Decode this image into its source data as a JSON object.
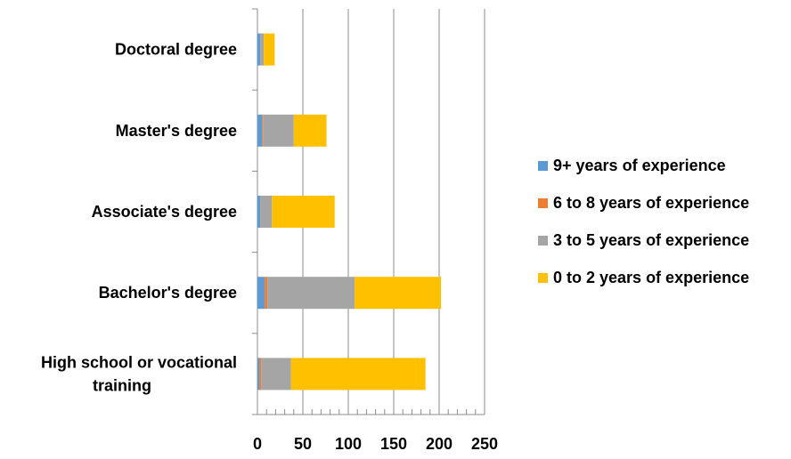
{
  "chart_data": {
    "type": "bar",
    "orientation": "horizontal",
    "stacked": true,
    "categories": [
      [
        "Doctoral degree"
      ],
      [
        "Master's degree"
      ],
      [
        "Associate's degree"
      ],
      [
        "Bachelor's degree"
      ],
      [
        "High school or vocational",
        "training"
      ]
    ],
    "series": [
      {
        "name": "9+ years of experience",
        "color": "#5B9BD5",
        "values": [
          3,
          5,
          3,
          8,
          2
        ]
      },
      {
        "name": "6 to 8 years of experience",
        "color": "#ED7D31",
        "values": [
          0,
          1,
          0,
          3,
          2
        ]
      },
      {
        "name": "3 to 5 years of experience",
        "color": "#A5A5A5",
        "values": [
          4,
          34,
          13,
          96,
          33
        ]
      },
      {
        "name": "0 to 2 years of experience",
        "color": "#FFC000",
        "values": [
          12,
          36,
          69,
          95,
          148
        ]
      }
    ],
    "xlim": [
      0,
      250
    ],
    "x_ticks": [
      0,
      50,
      100,
      150,
      200,
      250
    ],
    "grid": "vertical",
    "legend": "right"
  }
}
